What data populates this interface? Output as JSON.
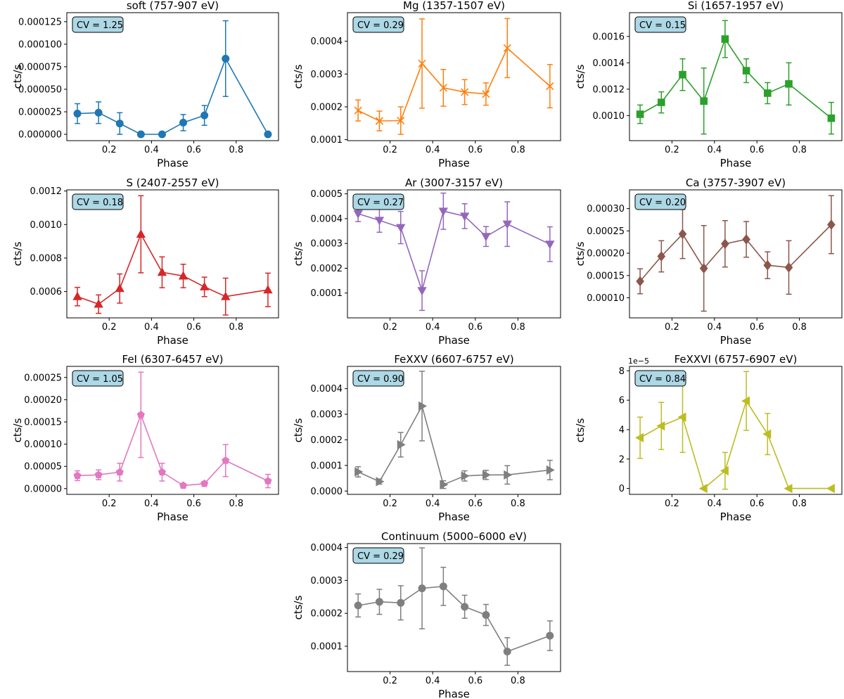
{
  "chart_data": [
    {
      "type": "line",
      "title": "soft (757-907 eV)",
      "xlabel": "Phase",
      "ylabel": "cts/s",
      "annotation": "CV = 1.25",
      "color": "#1f77b4",
      "marker": "circle",
      "x": [
        0.05,
        0.15,
        0.25,
        0.35,
        0.45,
        0.55,
        0.65,
        0.75,
        0.95
      ],
      "y": [
        2.3e-05,
        2.4e-05,
        1.2e-05,
        0.0,
        0.0,
        1.3e-05,
        2.1e-05,
        8.4e-05,
        0.0
      ],
      "yerr": [
        1.1e-05,
        1.2e-05,
        1.2e-05,
        0.0,
        0.0,
        9e-06,
        1.1e-05,
        4.2e-05,
        0.0
      ],
      "xlim": [
        0.0,
        1.0
      ],
      "ylim": [
        -7e-06,
        0.000135
      ],
      "xticks": [
        0.2,
        0.4,
        0.6,
        0.8
      ],
      "xtick_labels": [
        "0.2",
        "0.4",
        "0.6",
        "0.8"
      ],
      "yticks": [
        0,
        2.5e-05,
        5e-05,
        7.5e-05,
        0.0001,
        0.000125
      ],
      "ytick_labels": [
        "0.000000",
        "0.000025",
        "0.000050",
        "0.000075",
        "0.000100",
        "0.000125"
      ]
    },
    {
      "type": "line",
      "title": "Mg (1357-1507 eV)",
      "xlabel": "Phase",
      "ylabel": "cts/s",
      "annotation": "CV = 0.29",
      "color": "#ff7f0e",
      "marker": "x",
      "x": [
        0.05,
        0.15,
        0.25,
        0.35,
        0.45,
        0.55,
        0.65,
        0.75,
        0.95
      ],
      "y": [
        0.000189,
        0.000157,
        0.000158,
        0.000332,
        0.000258,
        0.000245,
        0.000239,
        0.000379,
        0.000263
      ],
      "yerr": [
        3.2e-05,
        3e-05,
        4.2e-05,
        0.000136,
        5.6e-05,
        3.8e-05,
        3.4e-05,
        9e-05,
        6.6e-05
      ],
      "xlim": [
        0.0,
        1.0
      ],
      "ylim": [
        9.7e-05,
        0.000487
      ],
      "xticks": [
        0.2,
        0.4,
        0.6,
        0.8
      ],
      "xtick_labels": [
        "0.2",
        "0.4",
        "0.6",
        "0.8"
      ],
      "yticks": [
        0.0001,
        0.0002,
        0.0003,
        0.0004
      ],
      "ytick_labels": [
        "0.0001",
        "0.0002",
        "0.0003",
        "0.0004"
      ]
    },
    {
      "type": "line",
      "title": "Si (1657-1957 eV)",
      "xlabel": "Phase",
      "ylabel": "cts/s",
      "annotation": "CV = 0.15",
      "color": "#2ca02c",
      "marker": "square",
      "x": [
        0.05,
        0.15,
        0.25,
        0.35,
        0.45,
        0.55,
        0.65,
        0.75,
        0.95
      ],
      "y": [
        0.00101,
        0.0011,
        0.00131,
        0.00111,
        0.00158,
        0.00134,
        0.00117,
        0.00124,
        0.00098
      ],
      "yerr": [
        7e-05,
        8e-05,
        0.00012,
        0.00025,
        0.00014,
        9e-05,
        8e-05,
        0.00016,
        0.00012
      ],
      "xlim": [
        0.0,
        1.0
      ],
      "ylim": [
        0.00081,
        0.00178
      ],
      "xticks": [
        0.2,
        0.4,
        0.6,
        0.8
      ],
      "xtick_labels": [
        "0.2",
        "0.4",
        "0.6",
        "0.8"
      ],
      "yticks": [
        0.001,
        0.0012,
        0.0014,
        0.0016
      ],
      "ytick_labels": [
        "0.0010",
        "0.0012",
        "0.0014",
        "0.0016"
      ]
    },
    {
      "type": "line",
      "title": "S (2407-2557 eV)",
      "xlabel": "Phase",
      "ylabel": "cts/s",
      "annotation": "CV = 0.18",
      "color": "#d62728",
      "marker": "triangle-up",
      "x": [
        0.05,
        0.15,
        0.25,
        0.35,
        0.45,
        0.55,
        0.65,
        0.75,
        0.95
      ],
      "y": [
        0.00057,
        0.000525,
        0.000618,
        0.000942,
        0.000715,
        0.000693,
        0.000628,
        0.00057,
        0.00061
      ],
      "yerr": [
        5.5e-05,
        5.5e-05,
        8.7e-05,
        0.00023,
        9.2e-05,
        7e-05,
        5.8e-05,
        0.00011,
        0.0001
      ],
      "xlim": [
        0.0,
        1.0
      ],
      "ylim": [
        0.000443,
        0.001207
      ],
      "xticks": [
        0.2,
        0.4,
        0.6,
        0.8
      ],
      "xtick_labels": [
        "0.2",
        "0.4",
        "0.6",
        "0.8"
      ],
      "yticks": [
        0.0006,
        0.0008,
        0.001,
        0.0012
      ],
      "ytick_labels": [
        "0.0006",
        "0.0008",
        "0.0010",
        "0.0012"
      ]
    },
    {
      "type": "line",
      "title": "Ar (3007-3157 eV)",
      "xlabel": "Phase",
      "ylabel": "cts/s",
      "annotation": "CV = 0.27",
      "color": "#9467bd",
      "marker": "triangle-down",
      "x": [
        0.05,
        0.15,
        0.25,
        0.35,
        0.45,
        0.55,
        0.65,
        0.75,
        0.95
      ],
      "y": [
        0.00042,
        0.000393,
        0.000364,
        0.00011,
        0.00043,
        0.00041,
        0.000328,
        0.000378,
        0.000297
      ],
      "yerr": [
        3.2e-05,
        4.8e-05,
        6.5e-05,
        8e-05,
        7.3e-05,
        5e-05,
        4e-05,
        9e-05,
        7e-05
      ],
      "xlim": [
        0.0,
        1.0
      ],
      "ylim": [
        0.0,
        0.000516
      ],
      "xticks": [
        0.2,
        0.4,
        0.6,
        0.8
      ],
      "xtick_labels": [
        "0.2",
        "0.4",
        "0.6",
        "0.8"
      ],
      "yticks": [
        0.0001,
        0.0002,
        0.0003,
        0.0004,
        0.0005
      ],
      "ytick_labels": [
        "0.0001",
        "0.0002",
        "0.0003",
        "0.0004",
        "0.0005"
      ]
    },
    {
      "type": "line",
      "title": "Ca (3757-3907 eV)",
      "xlabel": "Phase",
      "ylabel": "cts/s",
      "annotation": "CV = 0.20",
      "color": "#8c564b",
      "marker": "diamond",
      "x": [
        0.05,
        0.15,
        0.25,
        0.35,
        0.45,
        0.55,
        0.65,
        0.75,
        0.95
      ],
      "y": [
        0.000137,
        0.000193,
        0.000243,
        0.000166,
        0.000221,
        0.000231,
        0.000173,
        0.000168,
        0.000264
      ],
      "yerr": [
        2.8e-05,
        3.5e-05,
        5.5e-05,
        9.6e-05,
        5.2e-05,
        4e-05,
        3e-05,
        6e-05,
        6.5e-05
      ],
      "xlim": [
        0.0,
        1.0
      ],
      "ylim": [
        5.5e-05,
        0.000342
      ],
      "xticks": [
        0.2,
        0.4,
        0.6,
        0.8
      ],
      "xtick_labels": [
        "0.2",
        "0.4",
        "0.6",
        "0.8"
      ],
      "yticks": [
        0.0001,
        0.00015,
        0.0002,
        0.00025,
        0.0003
      ],
      "ytick_labels": [
        "0.00010",
        "0.00015",
        "0.00020",
        "0.00025",
        "0.00030"
      ]
    },
    {
      "type": "line",
      "title": "FeI (6307-6457 eV)",
      "xlabel": "Phase",
      "ylabel": "cts/s",
      "annotation": "CV = 1.05",
      "color": "#e377c2",
      "marker": "pentagon",
      "x": [
        0.05,
        0.15,
        0.25,
        0.35,
        0.45,
        0.55,
        0.65,
        0.75,
        0.95
      ],
      "y": [
        2.9e-05,
        3.1e-05,
        3.7e-05,
        0.000166,
        3.7e-05,
        7e-06,
        1.1e-05,
        6.3e-05,
        1.7e-05
      ],
      "yerr": [
        1.1e-05,
        1.1e-05,
        2e-05,
        9.6e-05,
        2e-05,
        4e-06,
        5e-06,
        3.6e-05,
        1.5e-05
      ],
      "xlim": [
        0.0,
        1.0
      ],
      "ylim": [
        -1.3e-05,
        0.000275
      ],
      "xticks": [
        0.2,
        0.4,
        0.6,
        0.8
      ],
      "xtick_labels": [
        "0.2",
        "0.4",
        "0.6",
        "0.8"
      ],
      "yticks": [
        0,
        5e-05,
        0.0001,
        0.00015,
        0.0002,
        0.00025
      ],
      "ytick_labels": [
        "0.00000",
        "0.00005",
        "0.00010",
        "0.00015",
        "0.00020",
        "0.00025"
      ]
    },
    {
      "type": "line",
      "title": "FeXXV (6607-6757 eV)",
      "xlabel": "Phase",
      "ylabel": "cts/s",
      "annotation": "CV = 0.90",
      "color": "#7f7f7f",
      "marker": "triangle-right",
      "x": [
        0.05,
        0.15,
        0.25,
        0.35,
        0.45,
        0.55,
        0.65,
        0.75,
        0.95
      ],
      "y": [
        7.5e-05,
        3.7e-05,
        0.000181,
        0.000332,
        2.5e-05,
        5.9e-05,
        6.3e-05,
        6.3e-05,
        8.2e-05
      ],
      "yerr": [
        2e-05,
        1e-05,
        4.8e-05,
        0.000136,
        1.5e-05,
        2e-05,
        1.8e-05,
        3.6e-05,
        3.8e-05
      ],
      "xlim": [
        0.0,
        1.0
      ],
      "ylim": [
        -1.3e-05,
        0.000487
      ],
      "xticks": [
        0.2,
        0.4,
        0.6,
        0.8
      ],
      "xtick_labels": [
        "0.2",
        "0.4",
        "0.6",
        "0.8"
      ],
      "yticks": [
        0,
        0.0001,
        0.0002,
        0.0003,
        0.0004
      ],
      "ytick_labels": [
        "0.0000",
        "0.0001",
        "0.0002",
        "0.0003",
        "0.0004"
      ]
    },
    {
      "type": "line",
      "title": "FeXXVI (6757-6907 eV)",
      "xlabel": "Phase",
      "ylabel": "cts/s",
      "annotation": "CV = 0.84",
      "color": "#bcbd22",
      "marker": "triangle-left",
      "offset_text": "1e−5",
      "x": [
        0.05,
        0.15,
        0.25,
        0.35,
        0.45,
        0.55,
        0.65,
        0.75,
        0.95
      ],
      "y": [
        3.45,
        4.25,
        4.85,
        0.0,
        1.2,
        5.95,
        3.7,
        0.0,
        0.0
      ],
      "yerr": [
        1.4,
        1.6,
        2.4,
        0.0,
        1.25,
        2.0,
        1.4,
        0.0,
        0.0
      ],
      "xlim": [
        0.0,
        1.0
      ],
      "ylim": [
        -0.4,
        8.3
      ],
      "xticks": [
        0.2,
        0.4,
        0.6,
        0.8
      ],
      "xtick_labels": [
        "0.2",
        "0.4",
        "0.6",
        "0.8"
      ],
      "yticks": [
        0,
        2,
        4,
        6,
        8
      ],
      "ytick_labels": [
        "0",
        "2",
        "4",
        "6",
        "8"
      ]
    },
    {
      "type": "line",
      "title": "Continuum (5000–6000 eV)",
      "xlabel": "Phase",
      "ylabel": "cts/s",
      "annotation": "CV = 0.29",
      "color": "#7f7f7f",
      "marker": "circle",
      "x": [
        0.05,
        0.15,
        0.25,
        0.35,
        0.45,
        0.55,
        0.65,
        0.75,
        0.95
      ],
      "y": [
        0.000224,
        0.000235,
        0.000232,
        0.000276,
        0.000282,
        0.00022,
        0.000195,
        8.4e-05,
        0.000132
      ],
      "yerr": [
        3.5e-05,
        3.8e-05,
        5.2e-05,
        0.000123,
        5.8e-05,
        3.5e-05,
        3.2e-05,
        4.2e-05,
        4.5e-05
      ],
      "xlim": [
        0.0,
        1.0
      ],
      "ylim": [
        2.3e-05,
        0.000412
      ],
      "xticks": [
        0.2,
        0.4,
        0.6,
        0.8
      ],
      "xtick_labels": [
        "0.2",
        "0.4",
        "0.6",
        "0.8"
      ],
      "yticks": [
        0.0001,
        0.0002,
        0.0003,
        0.0004
      ],
      "ytick_labels": [
        "0.0001",
        "0.0002",
        "0.0003",
        "0.0004"
      ]
    }
  ]
}
